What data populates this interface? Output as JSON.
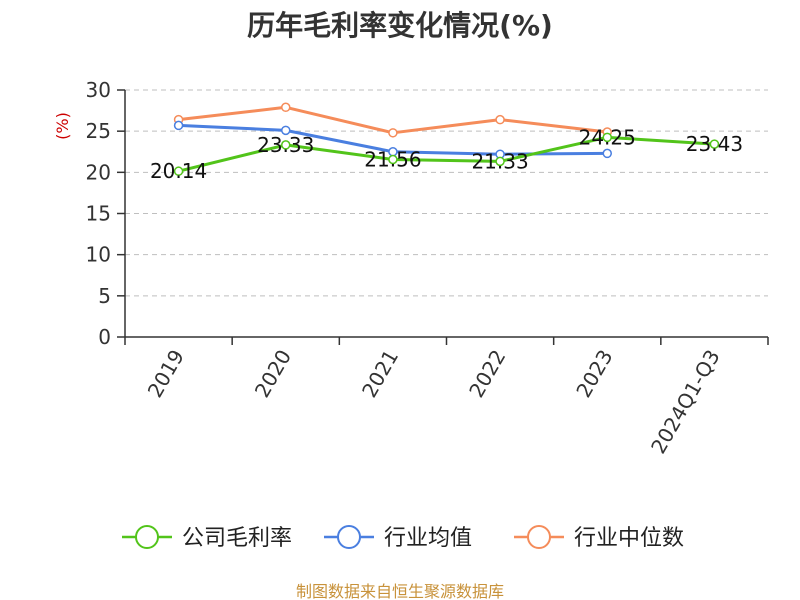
{
  "title": "历年毛利率变化情况(%)",
  "source": "制图数据来自恒生聚源数据库",
  "colors": {
    "company": "#52c41a",
    "industry_avg": "#4a7fe0",
    "industry_median": "#f58c5a",
    "ylabel": "#cc0000",
    "grid": "#bfbfbf",
    "axis": "#333333"
  },
  "chart_data": {
    "type": "line",
    "title": "历年毛利率变化情况(%)",
    "xlabel": "",
    "ylabel": "(%)",
    "categories": [
      "2019",
      "2020",
      "2021",
      "2022",
      "2023",
      "2024Q1-Q3"
    ],
    "ylim": [
      0,
      30
    ],
    "yticks": [
      0,
      5,
      10,
      15,
      20,
      25,
      30
    ],
    "grid": true,
    "legend_position": "bottom",
    "series": [
      {
        "name": "公司毛利率",
        "color_key": "company",
        "values": [
          20.14,
          23.33,
          21.56,
          21.33,
          24.25,
          23.43
        ],
        "labels": [
          "20.14",
          "23.33",
          "21.56",
          "21.33",
          "24.25",
          "23.43"
        ]
      },
      {
        "name": "行业均值",
        "color_key": "industry_avg",
        "values": [
          25.7,
          25.1,
          22.5,
          22.2,
          22.3,
          null
        ]
      },
      {
        "name": "行业中位数",
        "color_key": "industry_median",
        "values": [
          26.4,
          27.9,
          24.8,
          26.4,
          24.9,
          null
        ]
      }
    ]
  }
}
